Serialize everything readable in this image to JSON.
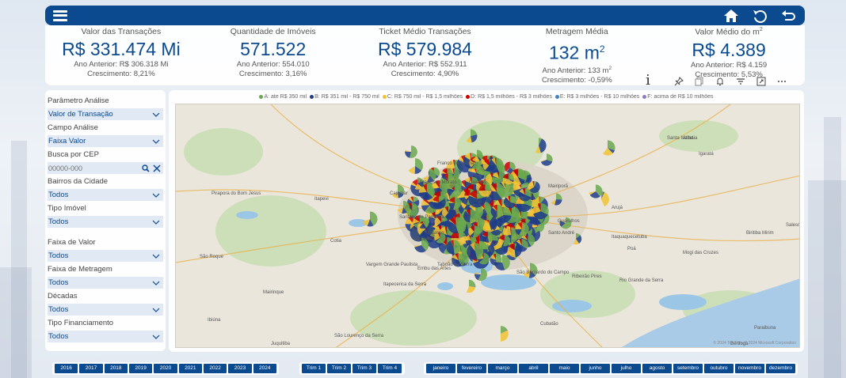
{
  "topbar": {
    "menu_icon": "hamburger-icon",
    "actions": [
      "home-icon",
      "back-rotate-icon",
      "return-icon"
    ]
  },
  "kpis": [
    {
      "title": "Valor das Transações",
      "value": "R$ 331.474 Mi",
      "value_sup": "",
      "prev": "Ano Anterior: R$ 306.318 Mi",
      "prev_sup": "",
      "growth": "Crescimento: 8,21%"
    },
    {
      "title": "Quantidade de Imóveis",
      "value": "571.522",
      "value_sup": "",
      "prev": "Ano Anterior: 554.010",
      "prev_sup": "",
      "growth": "Crescimento: 3,16%"
    },
    {
      "title": "Ticket Médio Transações",
      "value": "R$ 579.984",
      "value_sup": "",
      "prev": "Ano Anterior: R$ 552.911",
      "prev_sup": "",
      "growth": "Crescimento: 4,90%"
    },
    {
      "title": "Metragem Média",
      "value": "132 m",
      "value_sup": "2",
      "prev": "Ano Anterior: 133 m",
      "prev_sup": "2",
      "growth": "Crescimento: -0,59%"
    },
    {
      "title": "Valor Médio do m",
      "title_sup": "2",
      "value": "R$ 4.389",
      "value_sup": "",
      "prev": "Ano Anterior: R$ 4.159",
      "prev_sup": "",
      "growth": "Crescimento: 5,53%"
    }
  ],
  "visual_toolbar": [
    "info-icon",
    "pin-icon",
    "copy-icon",
    "alert-icon",
    "filter-icon",
    "focus-mode-icon",
    "more-options-icon"
  ],
  "filters": {
    "parametro_label": "Parâmetro Análise",
    "parametro_value": "Valor de Transação",
    "campo_label": "Campo Análise",
    "campo_value": "Faixa Valor",
    "cep_label": "Busca por CEP",
    "cep_placeholder": "00000-000",
    "bairros_label": "Bairros da Cidade",
    "bairros_value": "Todos",
    "tipo_label": "Tipo Imóvel",
    "tipo_value": "Todos",
    "faixa_valor_label": "Faixa de Valor",
    "faixa_valor_value": "Todos",
    "faixa_metragem_label": "Faixa de Metragem",
    "faixa_metragem_value": "Todos",
    "decadas_label": "Décadas",
    "decadas_value": "Todos",
    "financiamento_label": "Tipo Financiamento",
    "financiamento_value": "Todos"
  },
  "map": {
    "legend": [
      {
        "label": "A: ate R$ 350 mil",
        "color": "#6aa84f"
      },
      {
        "label": "B: R$ 351 mil - R$ 750 mil",
        "color": "#1f3c88"
      },
      {
        "label": "C: R$ 750 mil - R$ 1,5 milhões",
        "color": "#f1c232"
      },
      {
        "label": "D: R$ 1,5 milhões - R$ 3 milhões",
        "color": "#cc0000"
      },
      {
        "label": "E: R$ 3 milhões - R$ 10 milhões",
        "color": "#3d85c6"
      },
      {
        "label": "F: acima de R$ 10 milhões",
        "color": "#8e7cc3"
      }
    ],
    "places": [
      "Francisco Morato",
      "Franco da Rocha",
      "Caieiras",
      "Mairiporã",
      "Atibaia",
      "Cajamar",
      "Santana de Parnaíba",
      "Guarulhos",
      "Arujá",
      "Pirapora do Bom Jesus",
      "Barueri",
      "Itaquaquecetuba",
      "Itapevi",
      "Osasco",
      "Poá",
      "Cotia",
      "Taboão da Serra",
      "Santo André",
      "Mogi das Cruzes",
      "Embu das Artes",
      "São Bernardo do Campo",
      "Ribeirão Pires",
      "Itapecerica da Serra",
      "Rio Grande da Serra",
      "Biritiba Mirim",
      "Salesópolis",
      "Santa Isabel",
      "Igaratá",
      "Vargem Grande Paulista",
      "São Roque",
      "Ibiúna",
      "Mairinque",
      "Juquitiba",
      "São Lourenço da Serra",
      "Paraibuna",
      "Cubatão",
      "Bertioga"
    ],
    "attribution": "© 2024 TomTom, © 2024 Microsoft Corporation"
  },
  "years": [
    "2016",
    "2017",
    "2018",
    "2019",
    "2020",
    "2021",
    "2022",
    "2023",
    "2024"
  ],
  "quarters": [
    "Trim 1",
    "Trim 2",
    "Trim 3",
    "Trim 4"
  ],
  "months": [
    "janeiro",
    "fevereiro",
    "março",
    "abril",
    "maio",
    "junho",
    "julho",
    "agosto",
    "setembro",
    "outubro",
    "novembro",
    "dezembro"
  ]
}
